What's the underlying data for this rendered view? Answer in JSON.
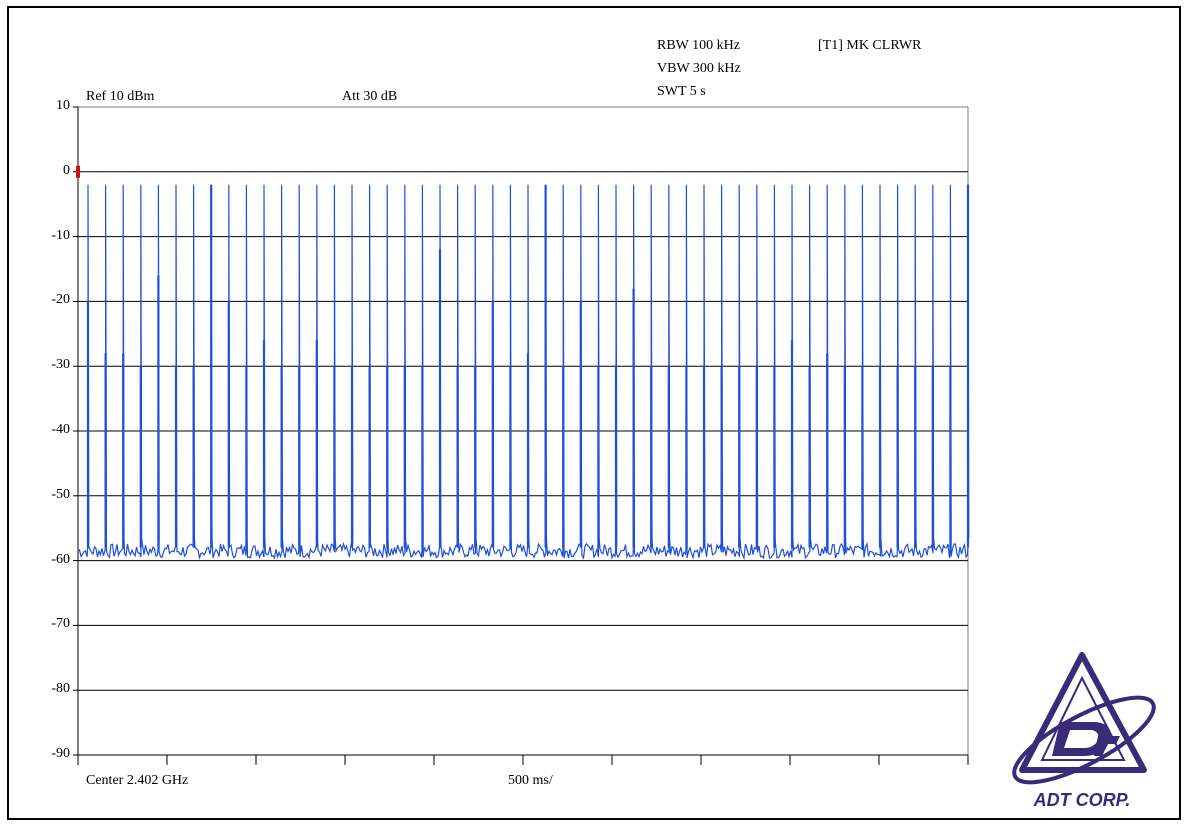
{
  "header": {
    "rbw": "RBW 100 kHz",
    "vbw": "VBW 300 kHz",
    "swt": "SWT 5 s",
    "marker": "[T1] MK CLRWR",
    "ref_level": "Ref 10 dBm",
    "attenuation": "Att  30 dB"
  },
  "footer": {
    "center": "Center 2.402 GHz",
    "span_per_div": "500 ms/"
  },
  "logo": {
    "text": "ADT CORP."
  },
  "colors": {
    "trace": "#1f4fd8",
    "grid": "#000000",
    "marker": "#d01010",
    "logo": "#3a2a7a"
  },
  "chart_data": {
    "type": "line",
    "ylim": [
      -90,
      10
    ],
    "y_ticks": [
      "10",
      "0",
      "-10",
      "-20",
      "-30",
      "-40",
      "-50",
      "-60",
      "-70",
      "-80",
      "-90"
    ],
    "x_divisions": 10,
    "grid_y_lines": [
      0,
      -10,
      -20,
      -30,
      -40,
      -50,
      -60,
      -70,
      -80
    ],
    "noise_floor_db": -58.5,
    "pulse_peak_db": -2,
    "pulse_count": 51,
    "pulse_heights_db": [
      -20,
      -28,
      -28,
      -30,
      -16,
      -30,
      -30,
      -2,
      -20,
      -30,
      -26,
      -30,
      -30,
      -26,
      -30,
      -30,
      -30,
      -30,
      -30,
      -30,
      -12,
      -30,
      -30,
      -20,
      -30,
      -28,
      -2,
      -30,
      -20,
      -30,
      -30,
      -18,
      -30,
      -30,
      -30,
      -30,
      -30,
      -30,
      -30,
      -30,
      -26,
      -30,
      -28,
      -30,
      -30,
      -30,
      -30,
      -30,
      -30,
      -30,
      -2
    ],
    "marker_x_div": 0,
    "marker_y_db": 0
  }
}
